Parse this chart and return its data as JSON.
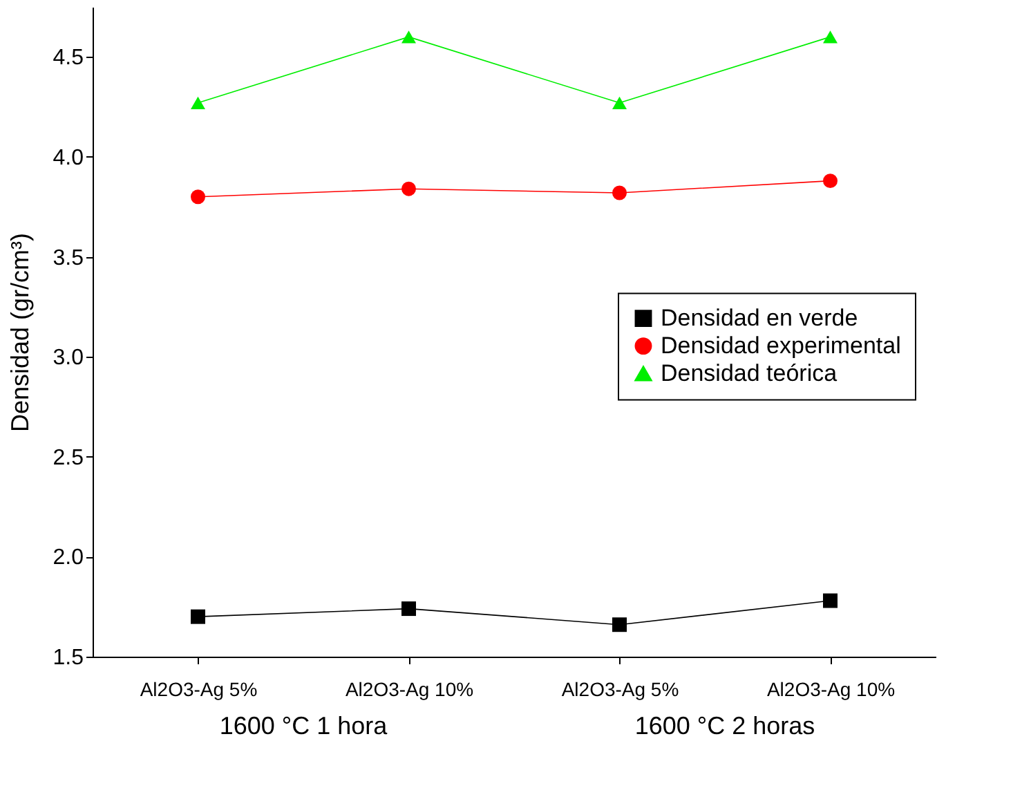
{
  "chart_data": {
    "type": "line",
    "ylabel": "Densidad (gr/cm³)",
    "categories": [
      "Al2O3-Ag 5%",
      "Al2O3-Ag 10%",
      "Al2O3-Ag 5%",
      "Al2O3-Ag 10%"
    ],
    "annotations": [
      "1600 °C 1 hora",
      "1600 °C 2 horas"
    ],
    "series": [
      {
        "name": "Densidad en verde",
        "color": "#000000",
        "marker": "square",
        "values": [
          1.7,
          1.74,
          1.66,
          1.78
        ]
      },
      {
        "name": "Densidad experimental",
        "color": "#ff0000",
        "marker": "circle",
        "values": [
          3.8,
          3.84,
          3.82,
          3.88
        ]
      },
      {
        "name": "Densidad teórica",
        "color": "#00ee00",
        "marker": "triangle",
        "values": [
          4.27,
          4.6,
          4.27,
          4.6
        ]
      }
    ],
    "ylim": [
      1.5,
      4.75
    ],
    "yticks": [
      1.5,
      {
        "value": 2,
        "label": "2.0"
      },
      2.5,
      {
        "value": 3,
        "label": "3.0"
      },
      3.5,
      {
        "value": 4,
        "label": "4.0"
      },
      4.5
    ],
    "line_style": "solid",
    "grid": false,
    "legend": "right"
  }
}
